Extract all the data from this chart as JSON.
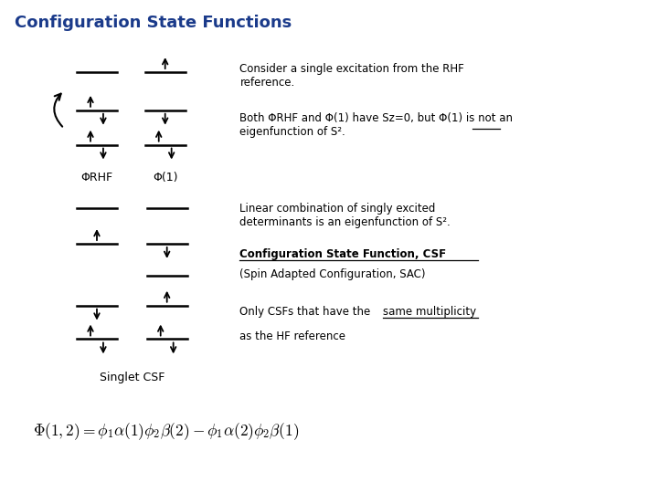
{
  "title": "Configuration State Functions",
  "title_color": "#1a3a8a",
  "bg_color": "#ffffff",
  "title_fontsize": 13,
  "text1": "Consider a single excitation from the RHF\nreference.",
  "text2_part1": "Both Φ",
  "text2_part2": "RHF",
  "text2_part3": " and Φ",
  "text2_part4": "(1)",
  "text2_part5": " have S",
  "text2_part6": "z",
  "text2_part7": "=0, but Φ",
  "text2_part8": "(1)",
  "text2_part9": " is ",
  "text2_part10": "not",
  "text2_part11": " an\neigenfunction of S².",
  "text3": "Linear combination of singly excited\ndeterminants is an eigenfunction of S².",
  "text4_bold": "Configuration State Function, CSF",
  "text4_sub": "(Spin Adapted Configuration, SAC)",
  "text5a": "Only CSFs that have the ",
  "text5b": "same multiplicity",
  "text5c": "\nas the HF reference",
  "label_RHF": "ΦRHF",
  "label_phi1": "Φ(1)",
  "label_singlet": "Singlet CSF",
  "formula": "$\\Phi(1,2) = \\phi_1\\alpha(1)\\phi_2\\beta(2) - \\phi_1\\alpha(2)\\phi_2\\beta(1)$"
}
